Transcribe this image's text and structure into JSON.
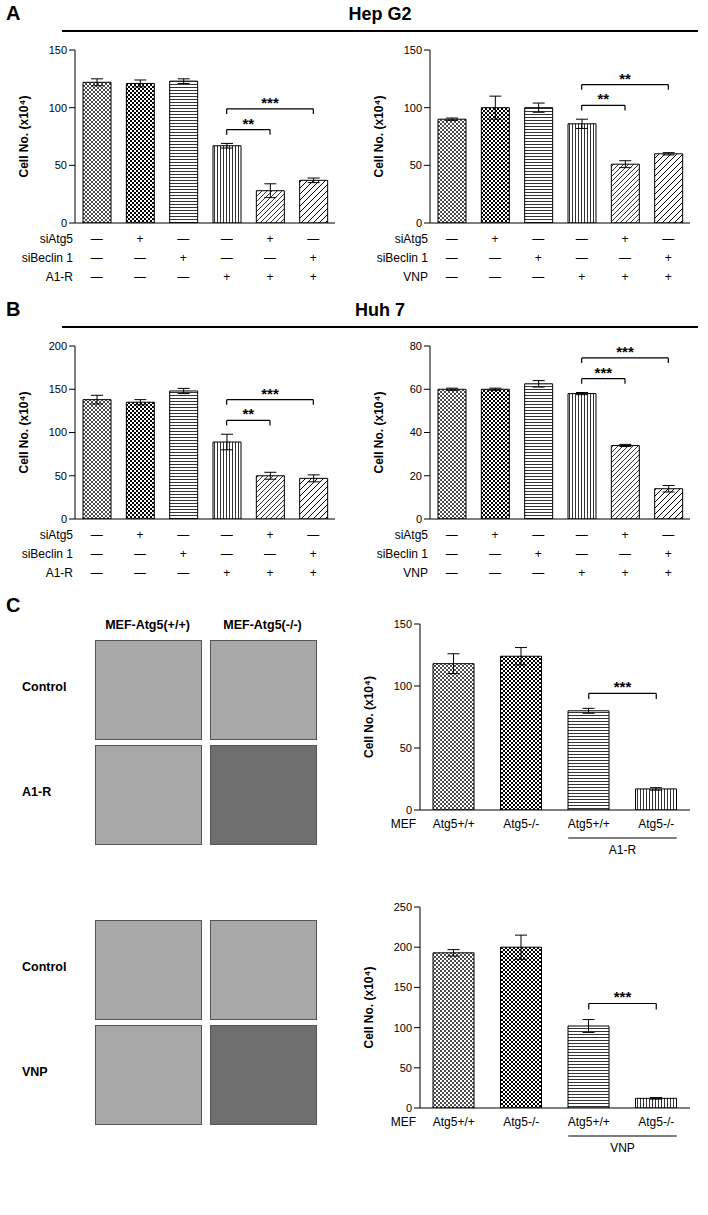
{
  "panels": [
    {
      "label": "A",
      "title": "Hep G2"
    },
    {
      "label": "B",
      "title": "Huh 7"
    },
    {
      "label": "C",
      "image_columns": [
        "MEF-Atg5(+/+)",
        "MEF-Atg5(-/-)"
      ],
      "image_rows": [
        "Control",
        "A1-R",
        "Control",
        "VNP"
      ]
    }
  ],
  "chart_data": [
    {
      "type": "bar",
      "y_label": "Cell No. (x10⁴)",
      "color": "#000000",
      "values": [
        122,
        121,
        123,
        67,
        28,
        37
      ],
      "errors": [
        3,
        3,
        2,
        2,
        6,
        2
      ],
      "ylim": [
        0,
        150
      ],
      "yticks": [
        0,
        50,
        100,
        150
      ],
      "treatments": [
        {
          "name": "siAtg5",
          "values": [
            "—",
            "+",
            "—",
            "—",
            "+",
            "—"
          ]
        },
        {
          "name": "siBeclin 1",
          "values": [
            "—",
            "—",
            "+",
            "—",
            "—",
            "+"
          ]
        },
        {
          "name": "A1-R",
          "values": [
            "—",
            "—",
            "—",
            "+",
            "+",
            "+"
          ]
        }
      ],
      "significance": [
        {
          "from": 3,
          "to": 4,
          "label": "**"
        },
        {
          "from": 3,
          "to": 5,
          "label": "***"
        }
      ]
    },
    {
      "type": "bar",
      "y_label": "Cell No. (x10⁴)",
      "color": "#000000",
      "values": [
        90,
        100,
        100,
        86,
        51,
        60
      ],
      "errors": [
        1,
        10,
        4,
        4,
        3,
        1
      ],
      "ylim": [
        0,
        150
      ],
      "yticks": [
        0,
        50,
        100,
        150
      ],
      "treatments": [
        {
          "name": "siAtg5",
          "values": [
            "—",
            "+",
            "—",
            "—",
            "+",
            "—"
          ]
        },
        {
          "name": "siBeclin 1",
          "values": [
            "—",
            "—",
            "+",
            "—",
            "—",
            "+"
          ]
        },
        {
          "name": "VNP",
          "values": [
            "—",
            "—",
            "—",
            "+",
            "+",
            "+"
          ]
        }
      ],
      "significance": [
        {
          "from": 3,
          "to": 4,
          "label": "**"
        },
        {
          "from": 3,
          "to": 5,
          "label": "**"
        }
      ]
    },
    {
      "type": "bar",
      "y_label": "Cell No. (x10⁴)",
      "color": "#000000",
      "values": [
        138,
        135,
        148,
        89,
        50,
        47
      ],
      "errors": [
        5,
        3,
        3,
        9,
        4,
        4
      ],
      "ylim": [
        0,
        200
      ],
      "yticks": [
        0,
        50,
        100,
        150,
        200
      ],
      "treatments": [
        {
          "name": "siAtg5",
          "values": [
            "—",
            "+",
            "—",
            "—",
            "+",
            "—"
          ]
        },
        {
          "name": "siBeclin 1",
          "values": [
            "—",
            "—",
            "+",
            "—",
            "—",
            "+"
          ]
        },
        {
          "name": "A1-R",
          "values": [
            "—",
            "—",
            "—",
            "+",
            "+",
            "+"
          ]
        }
      ],
      "significance": [
        {
          "from": 3,
          "to": 4,
          "label": "**"
        },
        {
          "from": 3,
          "to": 5,
          "label": "***"
        }
      ]
    },
    {
      "type": "bar",
      "y_label": "Cell No. (x10⁴)",
      "color": "#000000",
      "values": [
        60,
        60,
        62.5,
        58,
        34,
        14
      ],
      "errors": [
        0.5,
        0.5,
        1.5,
        0.5,
        0.5,
        1.5
      ],
      "ylim": [
        0,
        80
      ],
      "yticks": [
        0,
        20,
        40,
        60,
        80
      ],
      "treatments": [
        {
          "name": "siAtg5",
          "values": [
            "—",
            "+",
            "—",
            "—",
            "+",
            "—"
          ]
        },
        {
          "name": "siBeclin 1",
          "values": [
            "—",
            "—",
            "+",
            "—",
            "—",
            "+"
          ]
        },
        {
          "name": "VNP",
          "values": [
            "—",
            "—",
            "—",
            "+",
            "+",
            "+"
          ]
        }
      ],
      "significance": [
        {
          "from": 3,
          "to": 4,
          "label": "***"
        },
        {
          "from": 3,
          "to": 5,
          "label": "***"
        }
      ]
    },
    {
      "type": "bar",
      "y_label": "Cell No. (x10⁴)",
      "color": "#000000",
      "row_label": "MEF",
      "categories": [
        "Atg5+/+",
        "Atg5-/-",
        "Atg5+/+",
        "Atg5-/-"
      ],
      "values": [
        118,
        124,
        80,
        17
      ],
      "errors": [
        8,
        7,
        2,
        1
      ],
      "ylim": [
        0,
        150
      ],
      "yticks": [
        0,
        50,
        100,
        150
      ],
      "groups": [
        {
          "label": "A1-R",
          "from": 2,
          "to": 3
        }
      ],
      "significance": [
        {
          "from": 2,
          "to": 3,
          "label": "***"
        }
      ]
    },
    {
      "type": "bar",
      "y_label": "Cell No. (x10⁴)",
      "color": "#000000",
      "row_label": "MEF",
      "categories": [
        "Atg5+/+",
        "Atg5-/-",
        "Atg5+/+",
        "Atg5-/-"
      ],
      "values": [
        193,
        200,
        102,
        12
      ],
      "errors": [
        4,
        15,
        8,
        1
      ],
      "ylim": [
        0,
        250
      ],
      "yticks": [
        0,
        50,
        100,
        150,
        200,
        250
      ],
      "groups": [
        {
          "label": "VNP",
          "from": 2,
          "to": 3
        }
      ],
      "significance": [
        {
          "from": 2,
          "to": 3,
          "label": "***"
        }
      ]
    }
  ]
}
